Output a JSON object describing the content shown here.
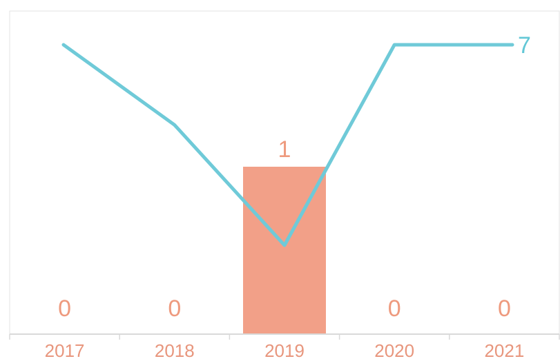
{
  "chart_data": {
    "type": "bar",
    "categories": [
      "2017",
      "2018",
      "2019",
      "2020",
      "2021"
    ],
    "series": [
      {
        "type": "bar",
        "values": [
          0,
          0,
          1,
          0,
          0
        ],
        "color": "#f2a088",
        "data_labels": [
          "0",
          "0",
          "1",
          "0",
          "0"
        ]
      },
      {
        "type": "line",
        "values": [
          7,
          5,
          2,
          7,
          7
        ],
        "color": "#6fcad8",
        "data_labels": [
          "",
          "",
          "",
          "",
          "7"
        ]
      }
    ],
    "title": "",
    "xlabel": "",
    "ylabel": "",
    "bar_ylim": [
      0,
      2
    ],
    "line_ylim": [
      0,
      8
    ],
    "grid": false,
    "legend": "none",
    "axis_color": "#d9d9d9"
  }
}
